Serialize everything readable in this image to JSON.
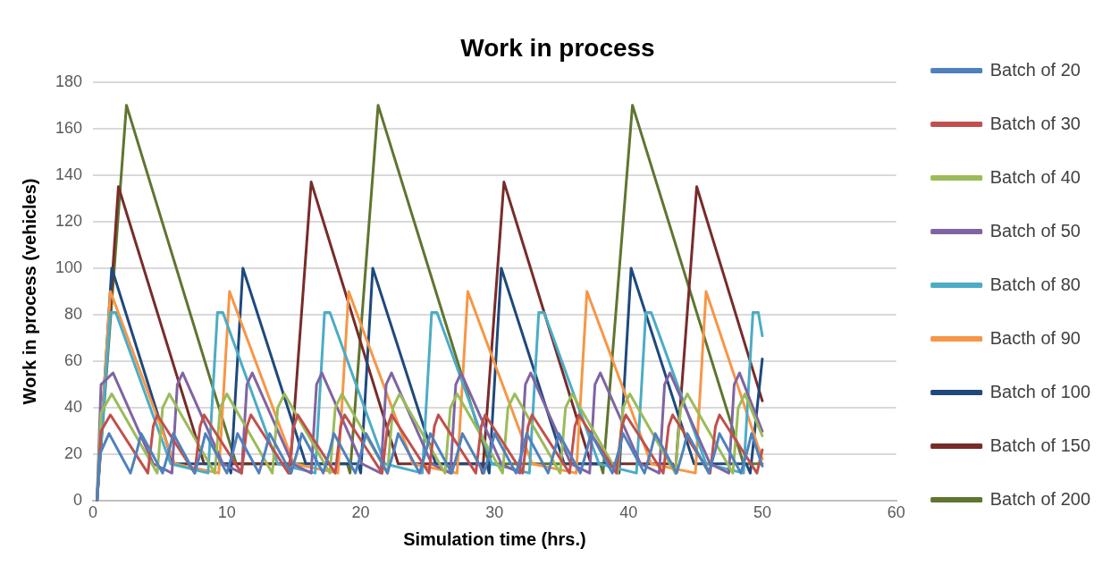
{
  "chart_data": {
    "type": "line",
    "title": "Work in process",
    "xlabel": "Simulation time (hrs.)",
    "ylabel": "Work in process (vehicles)",
    "xlim": [
      0,
      60
    ],
    "xticks": [
      0,
      10,
      20,
      30,
      40,
      50,
      60
    ],
    "ylim": [
      0,
      180
    ],
    "yticks": [
      0,
      20,
      40,
      60,
      80,
      100,
      120,
      140,
      160,
      180
    ],
    "grid": "y",
    "legend": "right",
    "marker": "none",
    "line_style": "solid",
    "series": [
      {
        "name": "Batch of 20",
        "color": "#4f81bd",
        "x": [
          0.3,
          0.5,
          1.2,
          2.8,
          3.3,
          3.6,
          5.2,
          5.7,
          6.0,
          7.6,
          8.1,
          8.4,
          10.0,
          10.5,
          10.8,
          12.4,
          12.9,
          13.2,
          14.8,
          15.3,
          15.6,
          17.2,
          17.7,
          18.0,
          19.6,
          20.1,
          20.4,
          22.0,
          22.5,
          22.8,
          24.4,
          24.9,
          25.2,
          26.8,
          27.3,
          27.6,
          29.2,
          29.7,
          30.0,
          31.6,
          32.1,
          32.4,
          34.0,
          34.5,
          34.8,
          36.4,
          36.9,
          37.2,
          38.8,
          39.3,
          39.6,
          41.2,
          41.7,
          42.0,
          43.6,
          44.1,
          44.4,
          46.0,
          46.5,
          46.8,
          48.4,
          48.9,
          49.2,
          50.0
        ],
        "values": [
          0,
          20,
          29,
          12,
          22,
          29,
          12,
          22,
          29,
          12,
          22,
          29,
          12,
          22,
          29,
          12,
          22,
          29,
          12,
          22,
          29,
          12,
          22,
          29,
          12,
          22,
          29,
          12,
          22,
          29,
          12,
          22,
          29,
          12,
          22,
          29,
          12,
          22,
          29,
          12,
          22,
          29,
          12,
          22,
          29,
          12,
          22,
          29,
          12,
          22,
          29,
          12,
          22,
          29,
          12,
          22,
          29,
          12,
          22,
          29,
          12,
          22,
          29,
          15
        ]
      },
      {
        "name": "Batch of 30",
        "color": "#c0504d",
        "x": [
          0.3,
          0.6,
          1.3,
          4.1,
          4.5,
          4.8,
          7.6,
          8.0,
          8.3,
          11.1,
          11.5,
          11.8,
          14.6,
          15.0,
          15.3,
          18.1,
          18.5,
          18.8,
          21.6,
          22.0,
          22.3,
          25.1,
          25.5,
          25.8,
          28.6,
          29.0,
          29.3,
          32.1,
          32.5,
          32.8,
          35.6,
          36.0,
          36.3,
          39.1,
          39.5,
          39.8,
          42.6,
          43.0,
          43.3,
          46.1,
          46.5,
          46.8,
          49.6,
          50.0
        ],
        "values": [
          0,
          30,
          37,
          12,
          32,
          37,
          12,
          32,
          37,
          12,
          32,
          37,
          12,
          32,
          37,
          12,
          32,
          37,
          12,
          32,
          37,
          12,
          32,
          37,
          12,
          32,
          37,
          12,
          32,
          37,
          12,
          32,
          37,
          12,
          32,
          37,
          12,
          32,
          37,
          12,
          32,
          37,
          12,
          22
        ]
      },
      {
        "name": "Batch of 40",
        "color": "#9bbb59",
        "x": [
          0.3,
          0.6,
          1.4,
          4.8,
          5.2,
          5.7,
          9.1,
          9.5,
          10.0,
          13.4,
          13.8,
          14.3,
          17.7,
          18.1,
          18.6,
          22.0,
          22.4,
          22.9,
          26.3,
          26.7,
          27.2,
          30.6,
          31.0,
          31.5,
          34.9,
          35.3,
          35.8,
          39.2,
          39.6,
          40.1,
          43.5,
          43.9,
          44.4,
          47.8,
          48.2,
          48.7,
          50.0
        ],
        "values": [
          0,
          38,
          46,
          12,
          40,
          46,
          12,
          40,
          46,
          12,
          40,
          46,
          12,
          40,
          46,
          12,
          40,
          46,
          12,
          40,
          46,
          12,
          40,
          46,
          12,
          40,
          46,
          12,
          40,
          46,
          12,
          40,
          46,
          12,
          40,
          46,
          28
        ]
      },
      {
        "name": "Batch of 50",
        "color": "#8064a2",
        "x": [
          0.3,
          0.6,
          1.5,
          4.5,
          5.9,
          6.3,
          6.7,
          9.7,
          11.1,
          11.5,
          11.9,
          14.9,
          16.3,
          16.7,
          17.1,
          20.1,
          21.5,
          21.9,
          22.3,
          25.3,
          26.7,
          27.1,
          27.5,
          30.5,
          31.9,
          32.3,
          32.7,
          35.7,
          37.1,
          37.5,
          37.9,
          40.9,
          42.3,
          42.7,
          43.1,
          46.1,
          47.5,
          47.9,
          48.3,
          50.0
        ],
        "values": [
          0,
          50,
          55,
          16,
          12,
          50,
          55,
          16,
          12,
          50,
          55,
          16,
          12,
          50,
          55,
          16,
          12,
          50,
          55,
          16,
          12,
          50,
          55,
          16,
          12,
          50,
          55,
          16,
          12,
          50,
          55,
          16,
          12,
          50,
          55,
          16,
          12,
          50,
          55,
          30
        ]
      },
      {
        "name": "Batch of 80",
        "color": "#4bacc6",
        "x": [
          0.3,
          1.3,
          1.7,
          5.8,
          8.6,
          9.3,
          9.7,
          13.8,
          16.6,
          17.3,
          17.7,
          21.8,
          24.6,
          25.3,
          25.7,
          29.8,
          32.6,
          33.3,
          33.7,
          37.8,
          40.6,
          41.3,
          41.7,
          45.8,
          48.6,
          49.3,
          49.7,
          50.0
        ],
        "values": [
          0,
          81,
          81,
          16,
          12,
          81,
          81,
          16,
          12,
          81,
          81,
          16,
          12,
          81,
          81,
          16,
          12,
          81,
          81,
          16,
          12,
          81,
          81,
          16,
          12,
          81,
          81,
          71
        ]
      },
      {
        "name": "Bacth of 90",
        "color": "#f79646",
        "x": [
          0.3,
          1.3,
          6.1,
          9.4,
          10.2,
          15.0,
          18.3,
          19.1,
          23.9,
          27.2,
          28.0,
          32.8,
          36.1,
          36.9,
          41.7,
          45.0,
          45.8,
          50.0
        ],
        "values": [
          0,
          90,
          16,
          12,
          90,
          16,
          12,
          90,
          16,
          12,
          90,
          16,
          12,
          90,
          16,
          12,
          90,
          18
        ]
      },
      {
        "name": "Batch of 100",
        "color": "#1f497d",
        "x": [
          0.3,
          1.4,
          6.0,
          10.1,
          10.3,
          11.2,
          15.9,
          19.8,
          20.0,
          20.9,
          25.6,
          29.4,
          29.6,
          30.5,
          35.2,
          39.1,
          39.3,
          40.2,
          44.9,
          48.8,
          49.1,
          50.0
        ],
        "values": [
          0,
          100,
          16,
          16,
          12,
          100,
          16,
          16,
          12,
          100,
          16,
          16,
          12,
          100,
          16,
          16,
          12,
          100,
          16,
          16,
          12,
          61
        ]
      },
      {
        "name": "Batch of 150",
        "color": "#772c2a",
        "x": [
          0.3,
          1.9,
          8.3,
          14.5,
          14.7,
          16.3,
          22.8,
          28.9,
          29.1,
          30.7,
          37.2,
          43.3,
          43.5,
          45.1,
          50.0
        ],
        "values": [
          0,
          135,
          16,
          16,
          12,
          137,
          16,
          16,
          12,
          137,
          16,
          16,
          12,
          135,
          43
        ]
      },
      {
        "name": "Batch of 200",
        "color": "#5f7530",
        "x": [
          0.3,
          2.5,
          10.7,
          19.0,
          19.2,
          21.3,
          29.6,
          37.9,
          38.1,
          40.3,
          48.6,
          50.0
        ],
        "values": [
          0,
          170,
          16,
          16,
          12,
          170,
          16,
          16,
          12,
          170,
          16,
          16
        ]
      }
    ]
  }
}
